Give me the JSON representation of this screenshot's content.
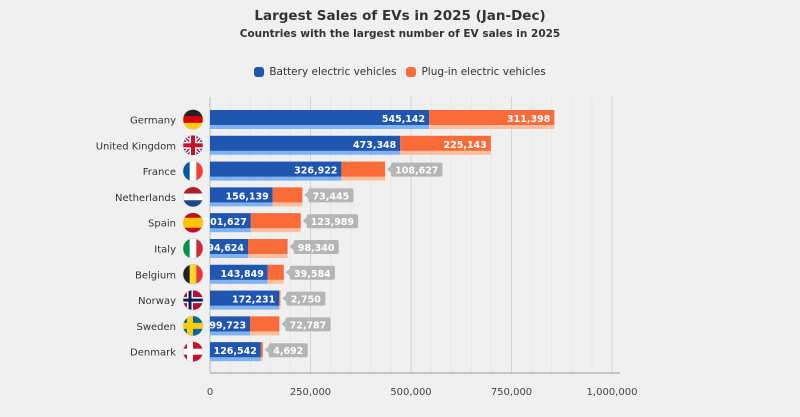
{
  "chart_data": {
    "type": "bar",
    "orientation": "horizontal",
    "stacked": true,
    "title": "Largest Sales of EVs in 2025 (Jan-Dec)",
    "subtitle": "Countries with the largest number of EV sales in 2025",
    "categories": [
      "Germany",
      "United Kingdom",
      "France",
      "Netherlands",
      "Spain",
      "Italy",
      "Belgium",
      "Norway",
      "Sweden",
      "Denmark"
    ],
    "flags": [
      "germany-flag-icon",
      "uk-flag-icon",
      "france-flag-icon",
      "netherlands-flag-icon",
      "spain-flag-icon",
      "italy-flag-icon",
      "belgium-flag-icon",
      "norway-flag-icon",
      "sweden-flag-icon",
      "denmark-flag-icon"
    ],
    "series": [
      {
        "name": "Battery electric vehicles",
        "color": "#1f56b0",
        "values": [
          545142,
          473348,
          326922,
          156139,
          101627,
          94624,
          143849,
          172231,
          99723,
          126542
        ]
      },
      {
        "name": "Plug-in electric vehicles",
        "color": "#fa6b3a",
        "values": [
          311398,
          225143,
          108627,
          73445,
          123989,
          98340,
          39584,
          2750,
          72787,
          4692
        ]
      }
    ],
    "xlim": [
      0,
      1000000
    ],
    "xticks": [
      "0",
      "250,000",
      "500,000",
      "750,000",
      "1,000,000"
    ],
    "xtick_values": [
      0,
      250000,
      500000,
      750000,
      1000000
    ],
    "grid": true,
    "legend_position": "top"
  }
}
